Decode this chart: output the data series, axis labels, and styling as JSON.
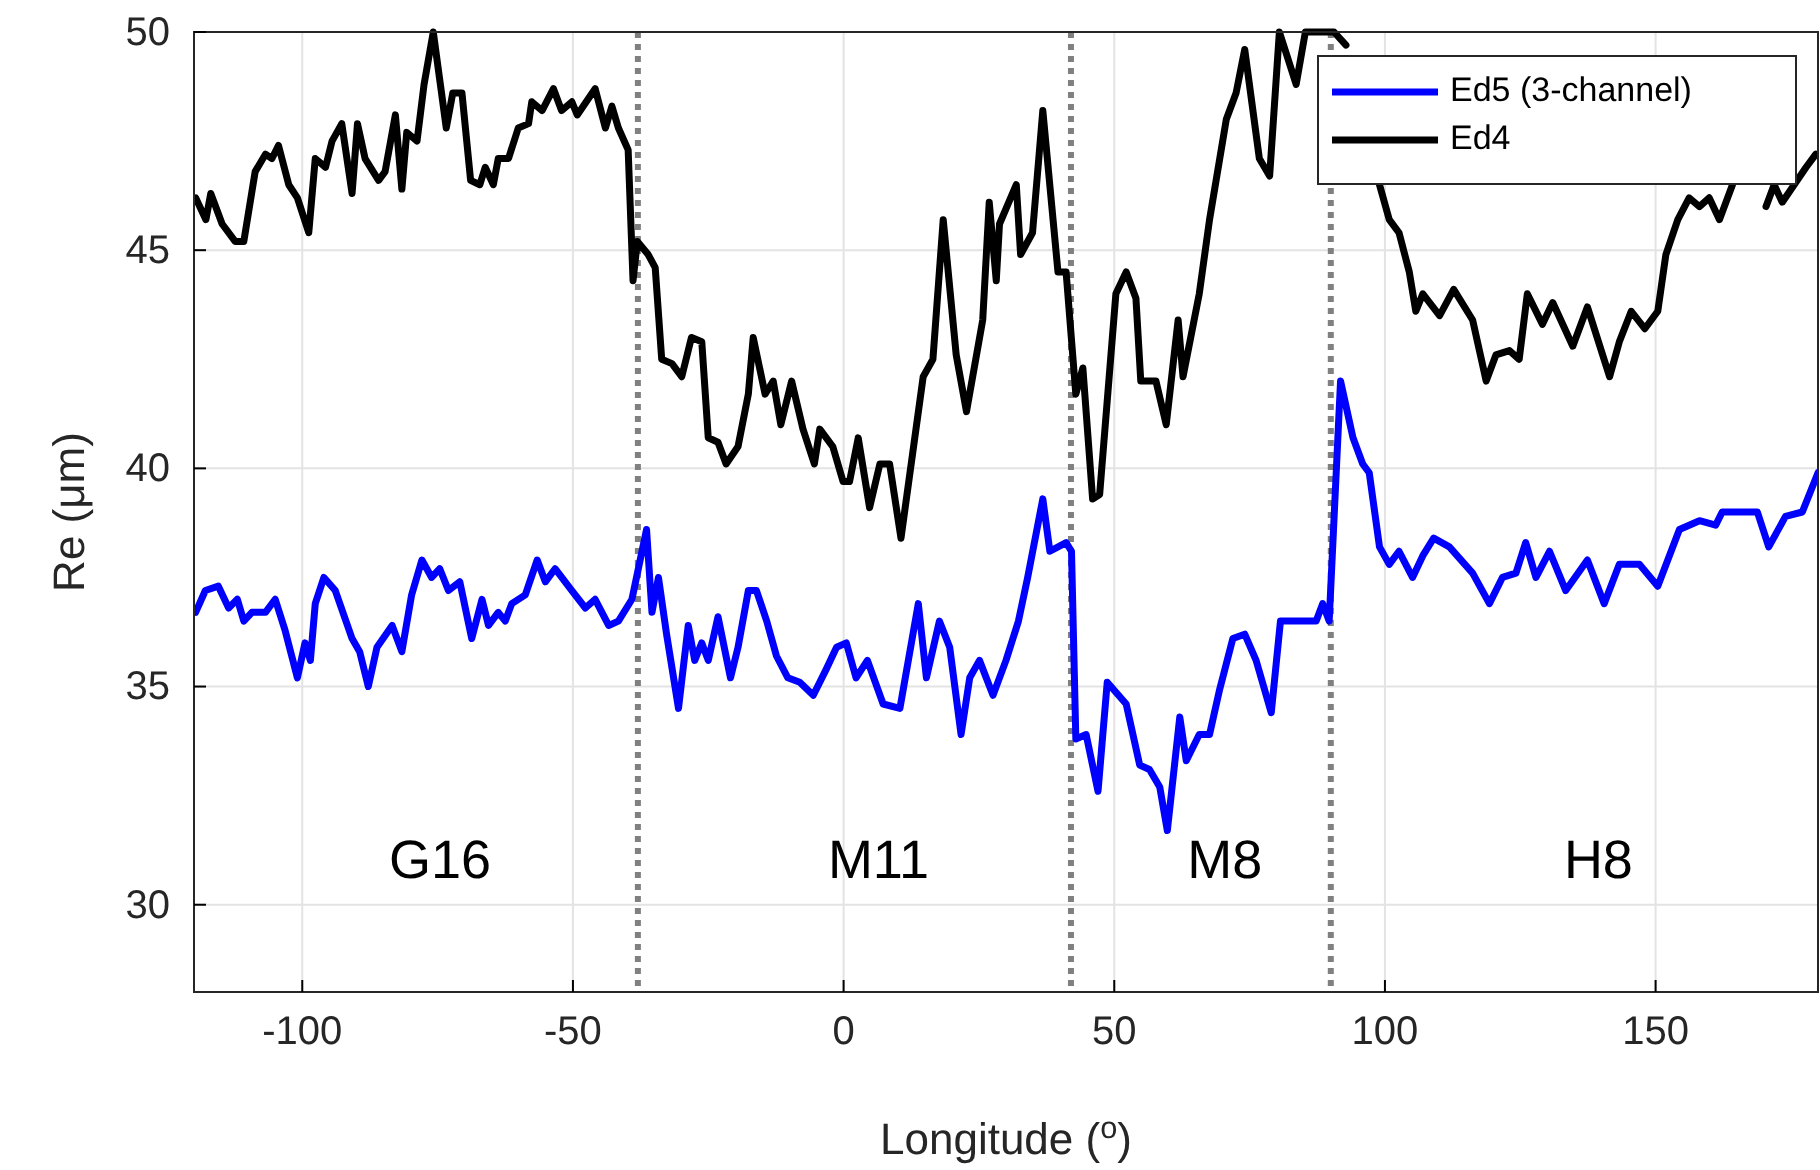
{
  "chart_data": {
    "type": "line",
    "xlabel": "Longitude ($^{o}$)",
    "ylabel": "Re (μm)",
    "xlim": [
      -120,
      180
    ],
    "ylim": [
      28,
      50
    ],
    "xticks": [
      -100,
      -50,
      0,
      50,
      100,
      150
    ],
    "yticks": [
      30,
      35,
      40,
      45,
      50
    ],
    "grid": true,
    "legend": "top right",
    "line_style": "solid",
    "marker": "none",
    "series": [
      {
        "name": "Ed5 (3-channel)",
        "color": "#0000ff",
        "x": [
          -119.7,
          -117.9,
          -115.5,
          -113.6,
          -112.0,
          -110.8,
          -109.3,
          -106.8,
          -105.0,
          -103.2,
          -100.9,
          -99.5,
          -98.5,
          -97.6,
          -96.0,
          -93.9,
          -90.8,
          -89.4,
          -87.8,
          -86.2,
          -83.4,
          -81.6,
          -79.8,
          -77.9,
          -76.1,
          -74.6,
          -73.0,
          -70.9,
          -68.7,
          -66.8,
          -65.6,
          -63.8,
          -62.5,
          -61.3,
          -58.8,
          -56.6,
          -55.1,
          -53.3,
          -50.2,
          -47.7,
          -45.9,
          -43.4,
          -41.6,
          -39.1,
          -36.4,
          -35.4,
          -34.2,
          -32.7,
          -30.5,
          -28.7,
          -27.5,
          -26.2,
          -25.0,
          -23.2,
          -20.9,
          -19.5,
          -17.6,
          -16.1,
          -14.2,
          -12.4,
          -10.3,
          -8.1,
          -5.6,
          -3.2,
          -1.3,
          0.5,
          2.3,
          4.4,
          7.3,
          10.4,
          13.8,
          15.3,
          17.7,
          19.6,
          21.7,
          23.3,
          25.1,
          27.6,
          30.0,
          32.3,
          34.0,
          36.8,
          38.1,
          41.1,
          42.1,
          42.9,
          44.8,
          47.0,
          48.7,
          52.2,
          54.7,
          56.5,
          58.4,
          59.8,
          62.1,
          63.3,
          65.7,
          67.6,
          69.4,
          71.9,
          74.1,
          76.2,
          79.0,
          80.7,
          84.2,
          87.3,
          88.5,
          89.7,
          91.8,
          94.1,
          95.9,
          97.1,
          99.0,
          100.8,
          102.6,
          105.1,
          107.0,
          109.0,
          111.9,
          116.2,
          119.3,
          121.7,
          124.2,
          126.0,
          127.9,
          130.4,
          133.4,
          137.4,
          140.5,
          143.3,
          147.0,
          150.4,
          154.4,
          158.1,
          161.1,
          162.3,
          166.6,
          168.8,
          170.9,
          174.0,
          177.1,
          180
        ],
        "values": [
          36.7,
          37.2,
          37.3,
          36.8,
          37.0,
          36.5,
          36.7,
          36.7,
          37.0,
          36.3,
          35.2,
          36.0,
          35.6,
          36.9,
          37.5,
          37.2,
          36.1,
          35.8,
          35.0,
          35.9,
          36.4,
          35.8,
          37.1,
          37.9,
          37.5,
          37.7,
          37.2,
          37.4,
          36.1,
          37.0,
          36.4,
          36.7,
          36.5,
          36.9,
          37.1,
          37.9,
          37.4,
          37.7,
          37.2,
          36.8,
          37.0,
          36.4,
          36.5,
          37.0,
          38.6,
          36.7,
          37.5,
          36.2,
          34.5,
          36.4,
          35.6,
          36.0,
          35.6,
          36.6,
          35.2,
          35.9,
          37.2,
          37.2,
          36.5,
          35.7,
          35.2,
          35.1,
          34.8,
          35.4,
          35.9,
          36.0,
          35.2,
          35.6,
          34.6,
          34.5,
          36.9,
          35.2,
          36.5,
          35.9,
          33.9,
          35.2,
          35.6,
          34.8,
          35.6,
          36.5,
          37.5,
          39.3,
          38.1,
          38.3,
          38.1,
          33.8,
          33.9,
          32.6,
          35.1,
          34.6,
          33.2,
          33.1,
          32.7,
          31.7,
          34.3,
          33.3,
          33.9,
          33.9,
          34.9,
          36.1,
          36.2,
          35.6,
          34.4,
          36.5,
          36.5,
          36.5,
          36.9,
          36.5,
          42.0,
          40.7,
          40.1,
          39.9,
          38.2,
          37.8,
          38.1,
          37.5,
          38.0,
          38.4,
          38.2,
          37.6,
          36.9,
          37.5,
          37.6,
          38.3,
          37.5,
          38.1,
          37.2,
          37.9,
          36.9,
          37.8,
          37.8,
          37.3,
          38.6,
          38.8,
          38.7,
          39.0,
          39.0,
          39.0,
          38.2,
          38.9,
          39.0,
          39.9
        ]
      },
      {
        "name": "Ed4",
        "color": "#000000",
        "x": [
          -119.7,
          -117.8,
          -116.9,
          -114.8,
          -112.4,
          -110.8,
          -108.7,
          -106.8,
          -105.6,
          -104.4,
          -102.5,
          -100.9,
          -98.8,
          -97.6,
          -95.7,
          -94.5,
          -92.7,
          -90.8,
          -89.8,
          -88.4,
          -85.9,
          -84.7,
          -82.8,
          -81.6,
          -80.7,
          -78.8,
          -77.5,
          -75.8,
          -74.6,
          -73.4,
          -72.2,
          -70.5,
          -68.9,
          -67.2,
          -66.2,
          -64.7,
          -63.8,
          -61.9,
          -60.1,
          -58.2,
          -57.6,
          -55.7,
          -53.6,
          -52.1,
          -50.2,
          -49.2,
          -45.9,
          -44.0,
          -42.8,
          -41.6,
          -39.8,
          -38.9,
          -38.1,
          -36.1,
          -34.8,
          -33.6,
          -31.7,
          -29.9,
          -28.1,
          -26.2,
          -25.0,
          -23.2,
          -21.7,
          -19.5,
          -17.6,
          -16.7,
          -14.5,
          -13.0,
          -11.6,
          -9.6,
          -7.5,
          -5.4,
          -4.4,
          -2.0,
          -0.1,
          1.1,
          2.7,
          4.8,
          6.7,
          8.5,
          10.6,
          14.7,
          16.5,
          18.4,
          20.8,
          22.7,
          25.7,
          26.9,
          28.2,
          28.8,
          31.9,
          32.7,
          34.9,
          36.8,
          39.6,
          41.1,
          42.9,
          44.2,
          46.0,
          47.3,
          50.3,
          52.2,
          54.0,
          54.9,
          57.7,
          59.6,
          61.8,
          62.7,
          65.7,
          67.6,
          70.7,
          72.5,
          74.1,
          76.8,
          78.7,
          80.5,
          83.6,
          85.3,
          90.6,
          92.8,
          95.0,
          99.0,
          100.8,
          102.6,
          104.5,
          105.7,
          107.0,
          110.1,
          112.7,
          116.2,
          118.7,
          120.5,
          123.0,
          124.8,
          126.3,
          129.1,
          131.0,
          134.7,
          137.4,
          141.5,
          143.3,
          145.5,
          148.0,
          150.4,
          151.9,
          154.1,
          156.2,
          158.1,
          159.9,
          161.8,
          164.2,
          167.0,
          170.4,
          171.9,
          173.4,
          177.8,
          179.6
        ],
        "values": [
          46.2,
          45.7,
          46.3,
          45.6,
          45.2,
          45.2,
          46.8,
          47.2,
          47.1,
          47.4,
          46.5,
          46.2,
          45.4,
          47.1,
          46.9,
          47.5,
          47.9,
          46.3,
          47.9,
          47.1,
          46.6,
          46.8,
          48.1,
          46.4,
          47.7,
          47.5,
          48.8,
          50,
          48.9,
          47.8,
          48.6,
          48.6,
          46.6,
          46.5,
          46.9,
          46.5,
          47.1,
          47.1,
          47.8,
          47.9,
          48.4,
          48.2,
          48.7,
          48.2,
          48.4,
          48.1,
          48.7,
          47.8,
          48.3,
          47.8,
          47.3,
          44.3,
          45.2,
          44.9,
          44.6,
          42.5,
          42.4,
          42.1,
          43.0,
          42.9,
          40.7,
          40.6,
          40.1,
          40.5,
          41.7,
          43.0,
          41.7,
          42.0,
          41.0,
          42.0,
          40.9,
          40.1,
          40.9,
          40.5,
          39.7,
          39.7,
          40.7,
          39.1,
          40.1,
          40.1,
          38.4,
          42.1,
          42.5,
          45.7,
          42.6,
          41.3,
          43.4,
          46.1,
          44.3,
          45.6,
          46.5,
          44.9,
          45.4,
          48.2,
          44.5,
          44.5,
          41.7,
          42.3,
          39.3,
          39.4,
          44.0,
          44.5,
          43.9,
          42.0,
          42.0,
          41.0,
          43.4,
          42.1,
          44.0,
          45.7,
          48.0,
          48.6,
          49.6,
          47.1,
          46.7,
          50,
          48.8,
          50,
          50,
          49.7,
          null,
          46.5,
          45.7,
          45.4,
          44.5,
          43.6,
          44.0,
          43.5,
          44.1,
          43.4,
          42.0,
          42.6,
          42.7,
          42.5,
          44.0,
          43.3,
          43.8,
          42.8,
          43.7,
          42.1,
          42.9,
          43.6,
          43.2,
          43.6,
          44.9,
          45.7,
          46.2,
          46.0,
          46.2,
          45.7,
          46.5,
          null,
          46.0,
          46.5,
          46.1,
          46.9,
          47.2
        ]
      }
    ],
    "ref_lines": [
      {
        "axis": "x",
        "value": -38,
        "color": "#808080",
        "line_style": "dotted"
      },
      {
        "axis": "x",
        "value": 42,
        "color": "#808080",
        "line_style": "dotted"
      },
      {
        "axis": "x",
        "value": 90,
        "color": "#808080",
        "line_style": "dotted"
      }
    ],
    "annotations": [
      "G16",
      "M11",
      "M8",
      "H8"
    ]
  }
}
